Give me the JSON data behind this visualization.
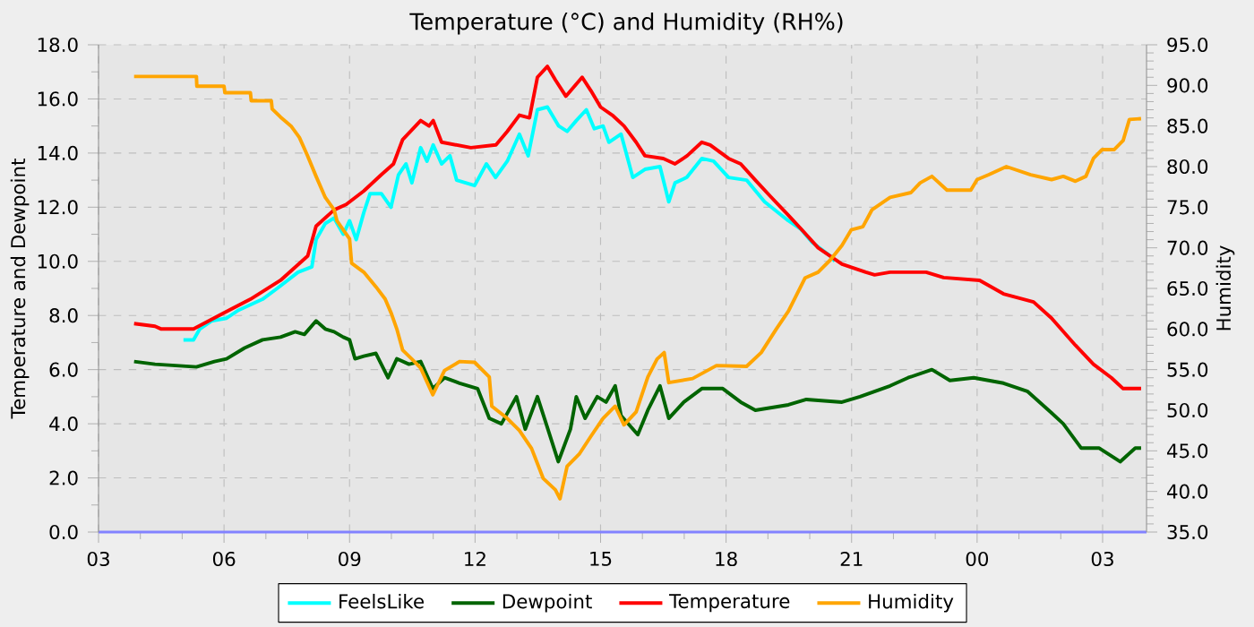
{
  "chart_data": {
    "type": "line",
    "title": "Temperature (°C) and Humidity (RH%)",
    "ylabel": "Temperature and Dewpoint",
    "y2label": "Humidity",
    "xlim": [
      3,
      28.05
    ],
    "xticks": [
      {
        "value": 3,
        "label": "03"
      },
      {
        "value": 6,
        "label": "06"
      },
      {
        "value": 9,
        "label": "09"
      },
      {
        "value": 12,
        "label": "12"
      },
      {
        "value": 15,
        "label": "15"
      },
      {
        "value": 18,
        "label": "18"
      },
      {
        "value": 21,
        "label": "21"
      },
      {
        "value": 24,
        "label": "00"
      },
      {
        "value": 27,
        "label": "03"
      }
    ],
    "ylim": [
      0,
      18
    ],
    "yticks": [
      {
        "value": 0,
        "label": "0.0"
      },
      {
        "value": 2,
        "label": "2.0"
      },
      {
        "value": 4,
        "label": "4.0"
      },
      {
        "value": 6,
        "label": "6.0"
      },
      {
        "value": 8,
        "label": "8.0"
      },
      {
        "value": 10,
        "label": "10.0"
      },
      {
        "value": 12,
        "label": "12.0"
      },
      {
        "value": 14,
        "label": "14.0"
      },
      {
        "value": 16,
        "label": "16.0"
      },
      {
        "value": 18,
        "label": "18.0"
      }
    ],
    "y2lim": [
      35,
      95
    ],
    "y2ticks": [
      {
        "value": 35,
        "label": "35.0"
      },
      {
        "value": 40,
        "label": "40.0"
      },
      {
        "value": 45,
        "label": "45.0"
      },
      {
        "value": 50,
        "label": "50.0"
      },
      {
        "value": 55,
        "label": "55.0"
      },
      {
        "value": 60,
        "label": "60.0"
      },
      {
        "value": 65,
        "label": "65.0"
      },
      {
        "value": 70,
        "label": "70.0"
      },
      {
        "value": 75,
        "label": "75.0"
      },
      {
        "value": 80,
        "label": "80.0"
      },
      {
        "value": 85,
        "label": "85.0"
      },
      {
        "value": 90,
        "label": "90.0"
      },
      {
        "value": 95,
        "label": "95.0"
      }
    ],
    "grid": true,
    "legend": "bottom",
    "series": [
      {
        "name": "FeelsLike",
        "color": "#00ffff",
        "x": [
          5.03,
          5.27,
          5.42,
          5.7,
          6.06,
          6.35,
          6.92,
          7.27,
          7.77,
          8.1,
          8.2,
          8.42,
          8.63,
          8.85,
          9.0,
          9.16,
          9.34,
          9.49,
          9.76,
          9.99,
          10.17,
          10.35,
          10.49,
          10.7,
          10.85,
          11.0,
          11.2,
          11.4,
          11.56,
          11.99,
          12.27,
          12.49,
          12.77,
          13.06,
          13.27,
          13.49,
          13.73,
          14.0,
          14.2,
          14.42,
          14.66,
          14.85,
          15.06,
          15.2,
          15.49,
          15.77,
          16.06,
          16.42,
          16.63,
          16.78,
          17.06,
          17.42,
          17.7,
          18.06,
          18.49,
          18.92,
          19.49,
          19.78,
          20.06,
          20.49,
          20.6
        ],
        "values": [
          7.1,
          7.1,
          7.5,
          7.8,
          7.9,
          8.2,
          8.6,
          9.0,
          9.6,
          9.8,
          10.8,
          11.4,
          11.6,
          11.0,
          11.5,
          10.8,
          11.8,
          12.5,
          12.5,
          12.0,
          13.2,
          13.6,
          12.9,
          14.2,
          13.7,
          14.3,
          13.6,
          13.9,
          13.0,
          12.8,
          13.6,
          13.1,
          13.7,
          14.7,
          13.9,
          15.6,
          15.7,
          15.0,
          14.8,
          15.2,
          15.6,
          14.9,
          15.0,
          14.4,
          14.7,
          13.1,
          13.4,
          13.5,
          12.2,
          12.9,
          13.1,
          13.8,
          13.7,
          13.1,
          13.0,
          12.2,
          11.5,
          11.2,
          10.7,
          10.2,
          10.0
        ]
      },
      {
        "name": "Dewpoint",
        "color": "#006400",
        "x": [
          3.85,
          4.35,
          5.34,
          5.77,
          6.06,
          6.49,
          6.92,
          7.35,
          7.7,
          7.92,
          8.2,
          8.42,
          8.63,
          8.85,
          9.0,
          9.13,
          9.34,
          9.63,
          9.92,
          10.13,
          10.42,
          10.7,
          10.99,
          11.27,
          11.63,
          12.06,
          12.34,
          12.63,
          12.99,
          13.2,
          13.49,
          13.7,
          13.99,
          14.28,
          14.42,
          14.63,
          14.92,
          15.13,
          15.35,
          15.49,
          15.89,
          16.13,
          16.42,
          16.63,
          16.99,
          17.42,
          17.92,
          18.35,
          18.7,
          19.49,
          19.92,
          20.77,
          21.2,
          21.92,
          22.35,
          22.92,
          23.35,
          23.92,
          24.63,
          25.2,
          25.78,
          26.06,
          26.49,
          26.92,
          27.42,
          27.78,
          27.92
        ],
        "values": [
          6.3,
          6.2,
          6.1,
          6.3,
          6.4,
          6.8,
          7.1,
          7.2,
          7.4,
          7.3,
          7.8,
          7.5,
          7.4,
          7.2,
          7.1,
          6.4,
          6.5,
          6.6,
          5.7,
          6.4,
          6.2,
          6.3,
          5.3,
          5.7,
          5.5,
          5.3,
          4.2,
          4.0,
          5.0,
          3.8,
          5.0,
          4.0,
          2.6,
          3.8,
          5.0,
          4.2,
          5.0,
          4.8,
          5.4,
          4.3,
          3.6,
          4.5,
          5.4,
          4.2,
          4.8,
          5.3,
          5.3,
          4.8,
          4.5,
          4.7,
          4.9,
          4.8,
          5.0,
          5.4,
          5.7,
          6.0,
          5.6,
          5.7,
          5.5,
          5.2,
          4.4,
          4.0,
          3.1,
          3.1,
          2.6,
          3.1,
          3.1
        ]
      },
      {
        "name": "Temperature",
        "color": "#ff0000",
        "x": [
          3.85,
          4.35,
          4.5,
          5.27,
          6.0,
          6.63,
          7.35,
          8.0,
          8.2,
          8.63,
          8.92,
          9.34,
          9.76,
          10.05,
          10.27,
          10.7,
          10.9,
          11.0,
          11.2,
          11.9,
          12.5,
          12.77,
          13.06,
          13.3,
          13.49,
          13.73,
          13.92,
          14.17,
          14.56,
          14.77,
          15.0,
          15.28,
          15.56,
          15.85,
          16.06,
          16.5,
          16.78,
          17.07,
          17.42,
          17.62,
          18.06,
          18.35,
          18.7,
          19.06,
          19.49,
          19.85,
          20.2,
          20.77,
          21.34,
          21.55,
          21.92,
          22.78,
          23.2,
          24.06,
          24.63,
          25.35,
          25.78,
          26.35,
          26.78,
          27.21,
          27.49,
          27.92
        ],
        "values": [
          7.7,
          7.6,
          7.5,
          7.5,
          8.1,
          8.6,
          9.3,
          10.2,
          11.3,
          11.9,
          12.1,
          12.6,
          13.2,
          13.6,
          14.5,
          15.2,
          15.0,
          15.2,
          14.4,
          14.2,
          14.3,
          14.8,
          15.4,
          15.3,
          16.8,
          17.2,
          16.7,
          16.1,
          16.8,
          16.3,
          15.7,
          15.4,
          15.0,
          14.4,
          13.9,
          13.8,
          13.6,
          13.9,
          14.4,
          14.3,
          13.8,
          13.6,
          13.0,
          12.4,
          11.7,
          11.1,
          10.5,
          9.9,
          9.6,
          9.5,
          9.6,
          9.6,
          9.4,
          9.3,
          8.8,
          8.5,
          7.9,
          6.9,
          6.2,
          5.7,
          5.3,
          5.3
        ]
      },
      {
        "name": "Humidity",
        "color": "#ffa500",
        "axis": "y2",
        "x": [
          3.85,
          5.34,
          5.35,
          6.0,
          6.02,
          6.63,
          6.65,
          7.13,
          7.15,
          7.35,
          7.6,
          7.8,
          7.99,
          8.2,
          8.42,
          8.63,
          8.7,
          9.0,
          9.05,
          9.34,
          9.63,
          9.85,
          10.0,
          10.13,
          10.27,
          10.49,
          10.7,
          10.99,
          11.27,
          11.63,
          11.99,
          12.34,
          12.4,
          12.77,
          13.06,
          13.35,
          13.63,
          13.92,
          14.03,
          14.2,
          14.49,
          14.77,
          15.06,
          15.35,
          15.56,
          15.85,
          16.13,
          16.35,
          16.52,
          16.63,
          17.2,
          17.77,
          18.49,
          18.84,
          19.2,
          19.49,
          19.89,
          20.2,
          20.49,
          20.77,
          20.99,
          21.27,
          21.49,
          21.92,
          22.42,
          22.64,
          22.92,
          23.28,
          23.85,
          24.0,
          24.28,
          24.7,
          25.28,
          25.78,
          26.06,
          26.35,
          26.6,
          26.78,
          26.99,
          27.28,
          27.49,
          27.64,
          27.92
        ],
        "values": [
          91.1,
          91.1,
          89.9,
          89.9,
          89.1,
          89.1,
          88.1,
          88.1,
          87.1,
          86.1,
          85.0,
          83.6,
          81.4,
          78.8,
          76.2,
          74.7,
          73.3,
          71.1,
          68.1,
          67.0,
          65.2,
          63.7,
          61.9,
          60.0,
          57.4,
          56.3,
          55.2,
          51.9,
          54.9,
          56.0,
          55.9,
          54.1,
          50.5,
          49.0,
          47.5,
          45.3,
          41.6,
          40.2,
          39.1,
          43.1,
          44.6,
          46.8,
          49.0,
          50.5,
          48.2,
          49.8,
          54.1,
          56.3,
          57.1,
          53.4,
          53.9,
          55.5,
          55.4,
          57.1,
          60.0,
          62.2,
          66.3,
          67.0,
          68.5,
          70.3,
          72.2,
          72.6,
          74.7,
          76.2,
          76.8,
          78.0,
          78.8,
          77.1,
          77.1,
          78.4,
          79.0,
          80.0,
          79.0,
          78.4,
          78.8,
          78.2,
          78.8,
          81.0,
          82.1,
          82.1,
          83.2,
          85.8,
          85.9
        ]
      }
    ]
  }
}
